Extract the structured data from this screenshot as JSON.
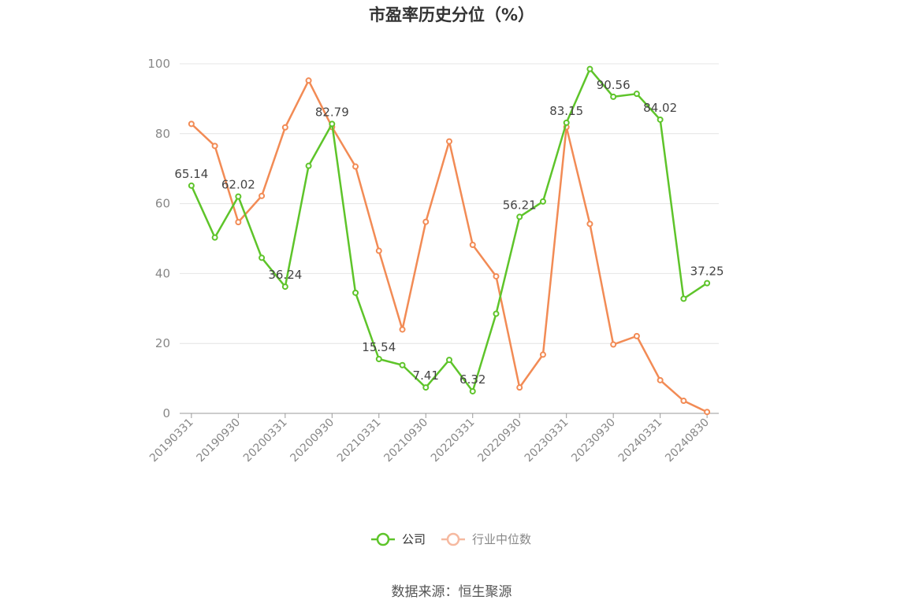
{
  "chart_data": {
    "type": "line",
    "title": "市盈率历史分位（%）",
    "source": "数据来源：恒生聚源",
    "ylim": [
      0,
      100
    ],
    "yticks": [
      "0",
      "20",
      "40",
      "60",
      "80",
      "100"
    ],
    "x": [
      "20190331",
      "20190630",
      "20190930",
      "20191231",
      "20200331",
      "20200630",
      "20200930",
      "20201231",
      "20210331",
      "20210630",
      "20210930",
      "20211231",
      "20220331",
      "20220630",
      "20220930",
      "20221231",
      "20230331",
      "20230630",
      "20230930",
      "20231231",
      "20240331",
      "20240630",
      "20240830"
    ],
    "xtick_labels": [
      "20190331",
      "20190930",
      "20200331",
      "20200930",
      "20210331",
      "20210930",
      "20220331",
      "20220930",
      "20230331",
      "20230930",
      "20240331",
      "20240830"
    ],
    "series": [
      {
        "name": "公司",
        "color": "#5ec42a",
        "values": [
          65.14,
          50.3,
          62.02,
          44.5,
          36.24,
          70.8,
          82.79,
          34.5,
          15.54,
          13.8,
          7.41,
          15.3,
          6.32,
          28.5,
          56.21,
          60.6,
          83.15,
          98.5,
          90.56,
          91.4,
          84.02,
          32.8,
          37.25
        ],
        "labels": [
          "65.14",
          "",
          "62.02",
          "",
          "36.24",
          "",
          "82.79",
          "",
          "15.54",
          "",
          "7.41",
          "",
          "6.32",
          "",
          "56.21",
          "",
          "83.15",
          "",
          "90.56",
          "",
          "84.02",
          "",
          "37.25"
        ]
      },
      {
        "name": "行业中位数",
        "color": "#f28b55",
        "values": [
          82.8,
          76.5,
          54.7,
          62.2,
          81.8,
          95.2,
          81.9,
          70.6,
          46.5,
          24.0,
          54.8,
          77.8,
          48.2,
          39.2,
          7.4,
          16.8,
          81.9,
          54.2,
          19.7,
          22.1,
          9.5,
          3.6,
          0.4
        ]
      }
    ],
    "legend": [
      {
        "name": "公司",
        "color": "#5ec42a",
        "active": true
      },
      {
        "name": "行业中位数",
        "color": "#f6b9a0",
        "active": false
      }
    ],
    "legend_position": "bottom-center",
    "grid": true
  }
}
